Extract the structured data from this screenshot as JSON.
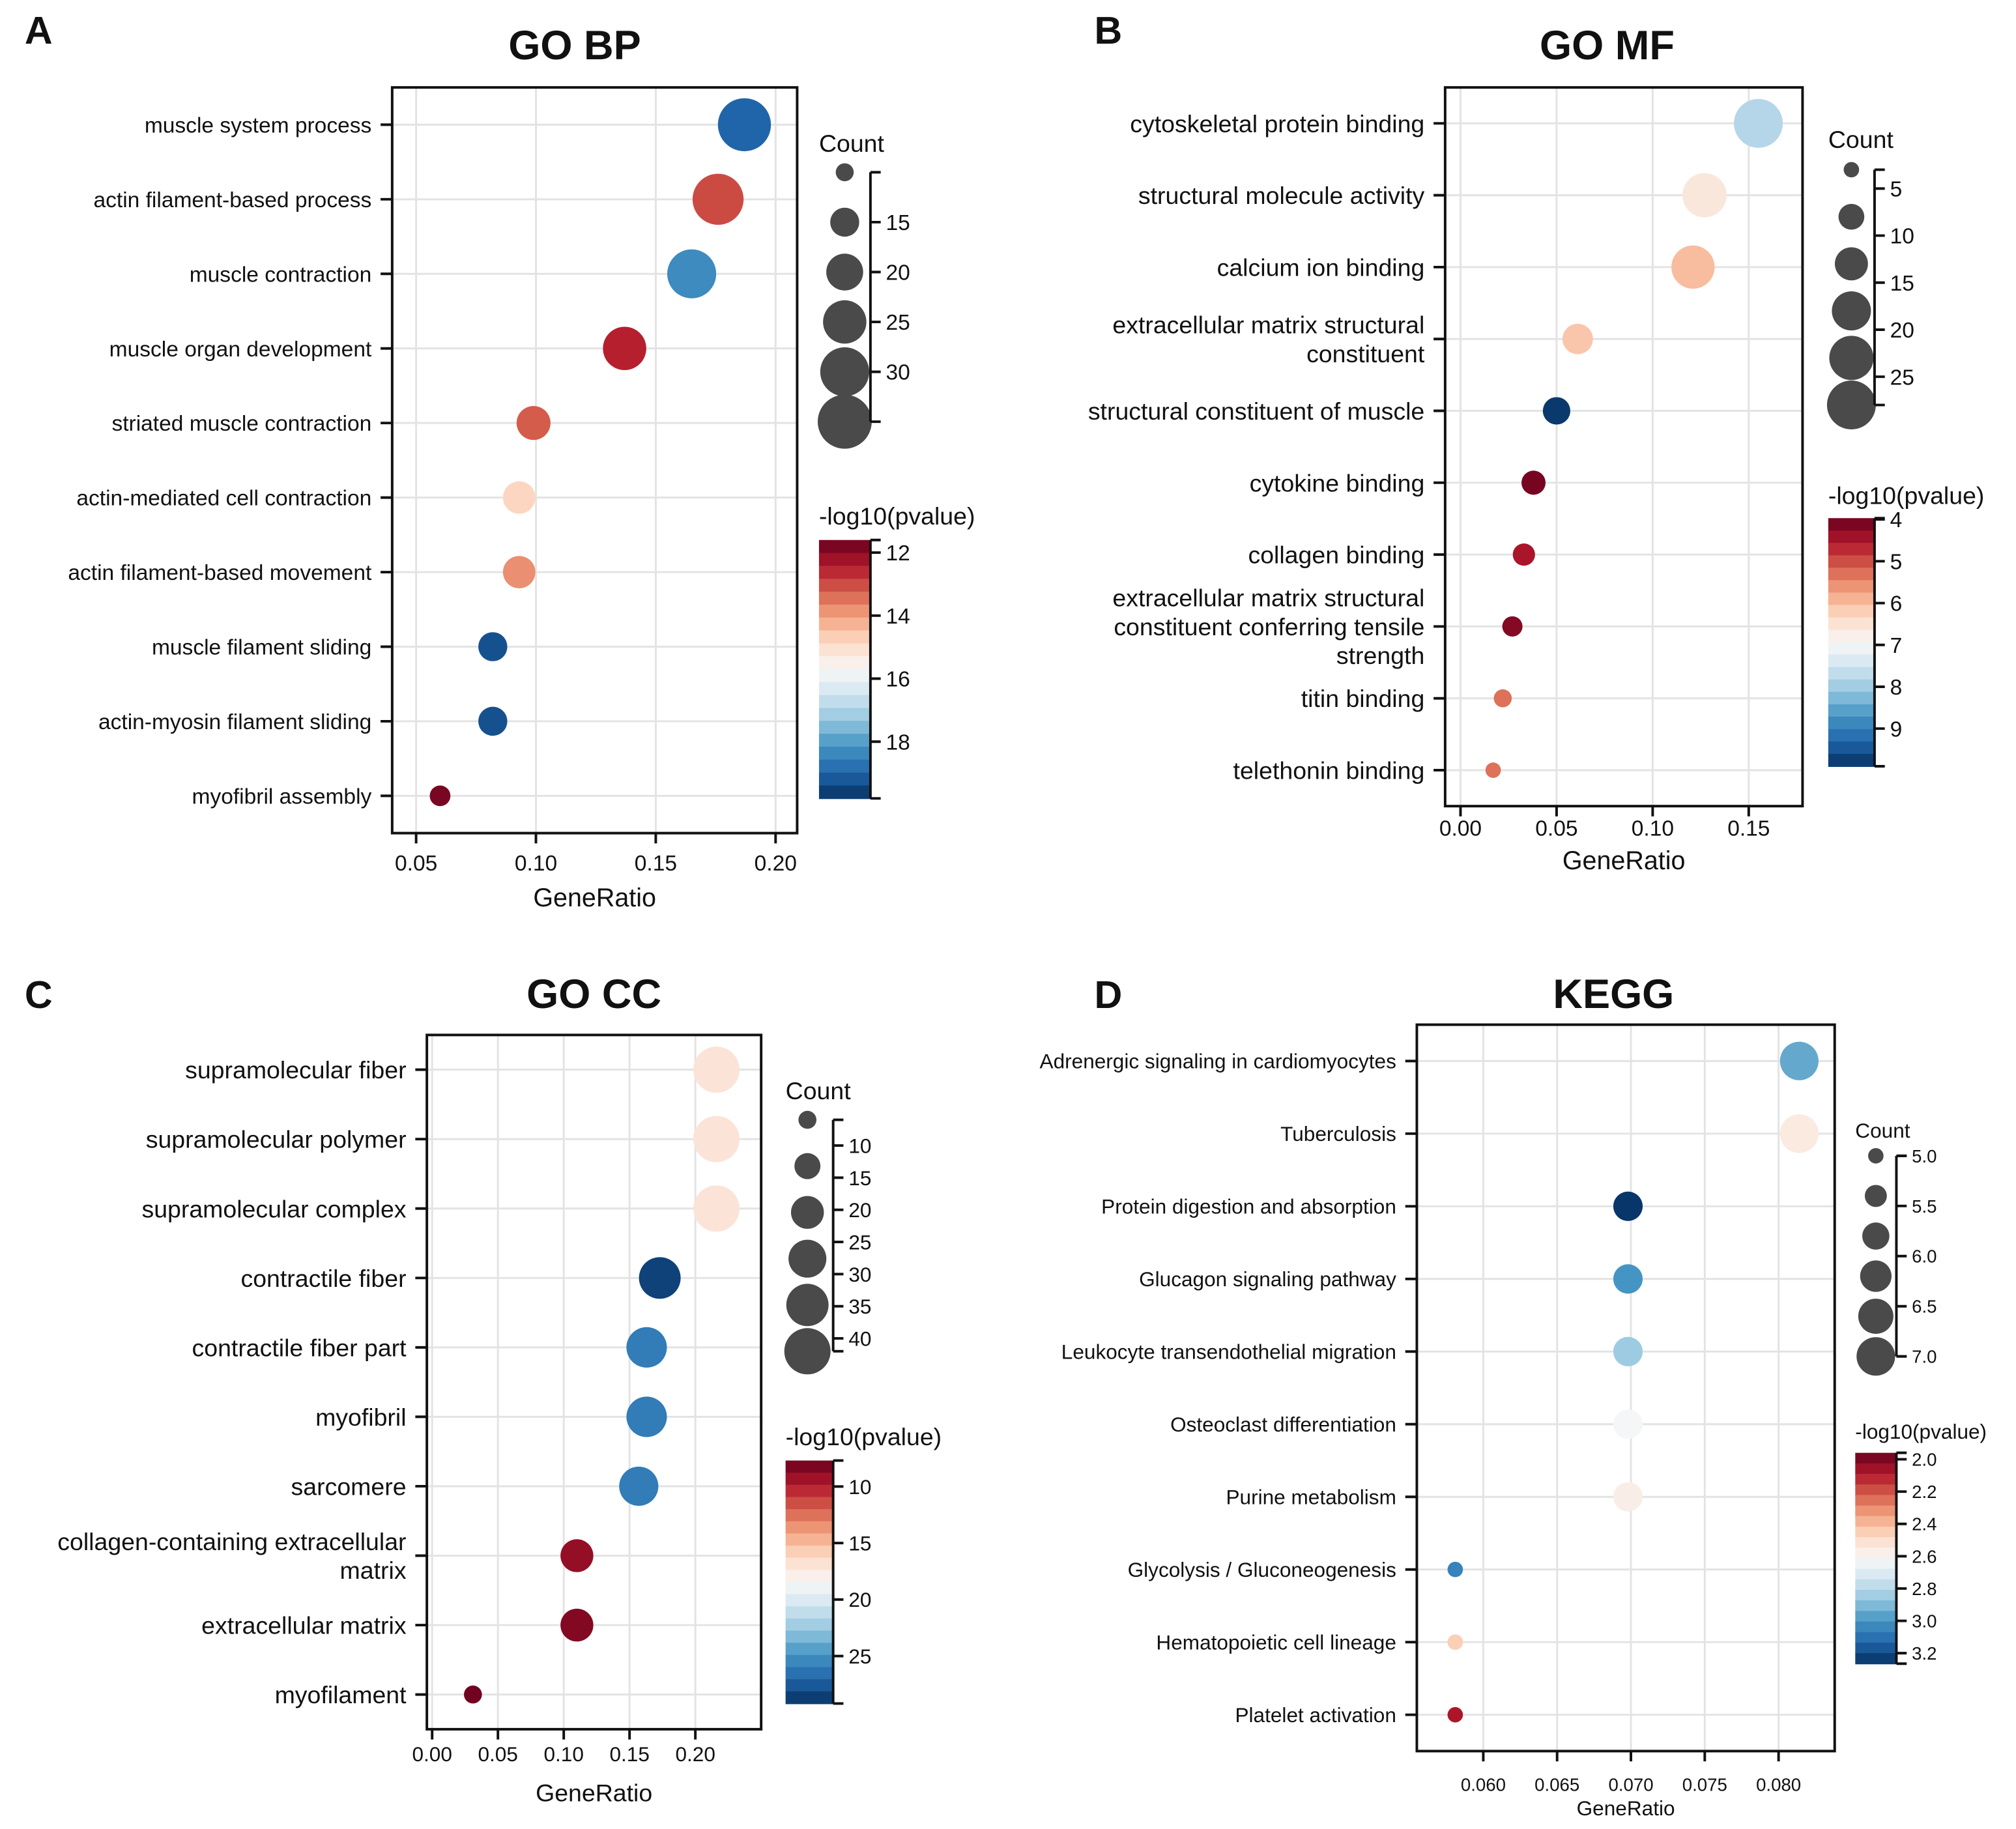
{
  "figure": {
    "colormap": "RdBu (dark red = low -log10(pvalue), dark blue = high)",
    "size_color": "#4a4a4a"
  },
  "chart_data": [
    {
      "panel": "A",
      "title": "GO BP",
      "type": "scatter",
      "xlabel": "GeneRatio",
      "xlim": [
        0.04,
        0.209
      ],
      "xticks": [
        "0.05",
        "0.10",
        "0.15",
        "0.20"
      ],
      "grid": true,
      "categories": [
        "muscle system process",
        "actin filament-based process",
        "muscle contraction",
        "muscle organ development",
        "striated muscle contraction",
        "actin-mediated cell contraction",
        "actin filament-based movement",
        "muscle filament sliding",
        "actin-myosin filament sliding",
        "myofibril assembly"
      ],
      "x": [
        0.187,
        0.176,
        0.165,
        0.137,
        0.099,
        0.093,
        0.093,
        0.082,
        0.082,
        0.06
      ],
      "count": [
        34,
        32,
        30,
        25,
        18,
        17,
        17,
        15,
        15,
        11
      ],
      "neglog10p": [
        19.0,
        13.0,
        18.3,
        12.5,
        13.2,
        14.8,
        13.8,
        19.3,
        19.3,
        11.8
      ],
      "size_legend": {
        "title": "Count",
        "circles": [
          10,
          15,
          20,
          25,
          30,
          35
        ],
        "ticks": [
          "15",
          "20",
          "25",
          "30"
        ]
      },
      "color_legend": {
        "title": "-log10(pvalue)",
        "range": [
          11.6,
          19.8
        ],
        "ticks": [
          "12",
          "14",
          "16",
          "18"
        ]
      }
    },
    {
      "panel": "B",
      "title": "GO MF",
      "type": "scatter",
      "xlabel": "GeneRatio",
      "xlim": [
        -0.008,
        0.178
      ],
      "xticks": [
        "0.00",
        "0.05",
        "0.10",
        "0.15"
      ],
      "grid": true,
      "categories": [
        "cytoskeletal protein binding",
        "structural molecule activity",
        "calcium ion binding",
        "extracellular matrix structural\nconstituent",
        "structural constituent of muscle",
        "cytokine binding",
        "collagen binding",
        "extracellular matrix structural\nconstituent conferring tensile\nstrength",
        "titin binding",
        "telethonin binding"
      ],
      "x": [
        0.155,
        0.127,
        0.121,
        0.061,
        0.05,
        0.038,
        0.033,
        0.027,
        0.022,
        0.017
      ],
      "count": [
        28,
        23,
        22,
        11,
        9,
        7,
        6,
        5,
        4,
        3
      ],
      "neglog10p": [
        7.8,
        6.6,
        6.0,
        6.1,
        9.8,
        4.1,
        4.5,
        4.2,
        5.3,
        5.3
      ],
      "size_legend": {
        "title": "Count",
        "circles": [
          3,
          8,
          13,
          18,
          23,
          28
        ],
        "ticks": [
          "5",
          "10",
          "15",
          "20",
          "25"
        ]
      },
      "color_legend": {
        "title": "-log10(pvalue)",
        "range": [
          3.97,
          9.9
        ],
        "ticks": [
          "4",
          "5",
          "6",
          "7",
          "8",
          "9"
        ]
      }
    },
    {
      "panel": "C",
      "title": "GO CC",
      "type": "scatter",
      "xlabel": "GeneRatio",
      "xlim": [
        -0.004,
        0.25
      ],
      "xticks": [
        "0.00",
        "0.05",
        "0.10",
        "0.15",
        "0.20"
      ],
      "grid": true,
      "categories": [
        "supramolecular fiber",
        "supramolecular polymer",
        "supramolecular complex",
        "contractile fiber",
        "contractile fiber part",
        "myofibril",
        "sarcomere",
        "collagen-containing extracellular\nmatrix",
        "extracellular matrix",
        "myofilament"
      ],
      "x": [
        0.216,
        0.216,
        0.216,
        0.173,
        0.163,
        0.163,
        0.157,
        0.11,
        0.11,
        0.031
      ],
      "count": [
        42,
        42,
        42,
        34,
        32,
        32,
        30,
        21,
        21,
        6
      ],
      "neglog10p": [
        17.0,
        17.0,
        17.0,
        28.5,
        26.0,
        26.0,
        26.0,
        9.0,
        8.5,
        8.0
      ],
      "size_legend": {
        "title": "Count",
        "circles": [
          6,
          13,
          21,
          28,
          35,
          42
        ],
        "ticks": [
          "10",
          "15",
          "20",
          "25",
          "30",
          "35",
          "40"
        ]
      },
      "color_legend": {
        "title": "-log10(pvalue)",
        "range": [
          7.7,
          29.2
        ],
        "ticks": [
          "10",
          "15",
          "20",
          "25"
        ]
      }
    },
    {
      "panel": "D",
      "title": "KEGG",
      "type": "scatter",
      "xlabel": "GeneRatio",
      "xlim": [
        0.0555,
        0.0838
      ],
      "xticks": [
        "0.060",
        "0.065",
        "0.070",
        "0.075",
        "0.080"
      ],
      "grid": true,
      "categories": [
        "Adrenergic signaling in cardiomyocytes",
        "Tuberculosis",
        "Protein digestion and absorption",
        "Glucagon signaling pathway",
        "Leukocyte transendothelial migration",
        "Osteoclast differentiation",
        "Purine metabolism",
        "Glycolysis / Gluconeogenesis",
        "Hematopoietic cell lineage",
        "Platelet activation"
      ],
      "x": [
        0.0814,
        0.0814,
        0.0698,
        0.0698,
        0.0698,
        0.0698,
        0.0698,
        0.0581,
        0.0581,
        0.0581
      ],
      "count": [
        7,
        7,
        6,
        6,
        6,
        6,
        6,
        5,
        5,
        5
      ],
      "neglog10p": [
        2.95,
        2.55,
        3.25,
        3.0,
        2.85,
        2.62,
        2.57,
        3.05,
        2.45,
        2.08
      ],
      "size_legend": {
        "title": "Count",
        "circles": [
          5.0,
          5.4,
          5.8,
          6.2,
          6.6,
          7.0
        ],
        "ticks": [
          "5.0",
          "5.5",
          "6.0",
          "6.5",
          "7.0"
        ]
      },
      "color_legend": {
        "title": "-log10(pvalue)",
        "range": [
          1.96,
          3.265
        ],
        "ticks": [
          "2.0",
          "2.2",
          "2.4",
          "2.6",
          "2.8",
          "3.0",
          "3.2"
        ]
      }
    }
  ]
}
